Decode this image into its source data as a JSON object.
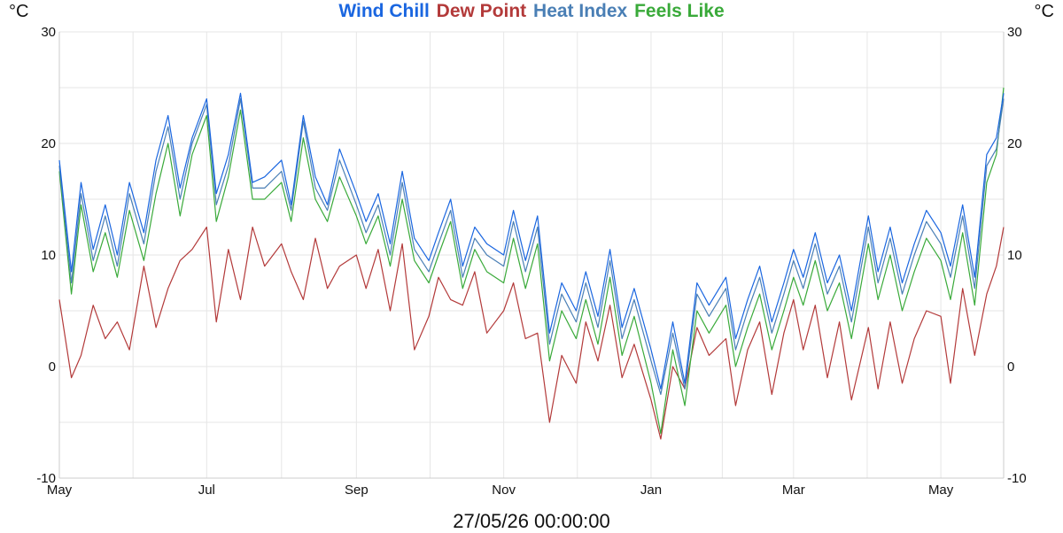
{
  "units": {
    "left": "°C",
    "right": "°C"
  },
  "footer": {
    "timestamp": "27/05/26 00:00:00"
  },
  "colors": {
    "grid": "#e6e6e6",
    "axis": "#cccccc",
    "wind_chill": "#1a66e0",
    "dew_point": "#b33a3a",
    "heat_index": "#4a7fb5",
    "feels_like": "#3aaa3a"
  },
  "chart_data": {
    "type": "line",
    "title": "",
    "xlabel": "",
    "ylabel": "°C",
    "ylim": [
      -10,
      30
    ],
    "yticks": [
      -10,
      0,
      10,
      20,
      30
    ],
    "x_range": [
      "2025-05-01",
      "2026-05-27"
    ],
    "x_tick_dates": [
      "2025-05-01",
      "2025-07-01",
      "2025-09-01",
      "2025-11-01",
      "2026-01-01",
      "2026-03-01",
      "2026-05-01"
    ],
    "x_tick_labels": [
      "May",
      "Jul",
      "Sep",
      "Nov",
      "Jan",
      "Mar",
      "May"
    ],
    "grid": true,
    "legend_position": "top-center",
    "series": [
      {
        "name": "Wind Chill",
        "key": "wind_chill",
        "x": [
          "2025-05-01",
          "2025-05-06",
          "2025-05-10",
          "2025-05-15",
          "2025-05-20",
          "2025-05-25",
          "2025-05-30",
          "2025-06-05",
          "2025-06-10",
          "2025-06-15",
          "2025-06-20",
          "2025-06-25",
          "2025-07-01",
          "2025-07-05",
          "2025-07-10",
          "2025-07-15",
          "2025-07-20",
          "2025-07-25",
          "2025-08-01",
          "2025-08-05",
          "2025-08-10",
          "2025-08-15",
          "2025-08-20",
          "2025-08-25",
          "2025-09-01",
          "2025-09-05",
          "2025-09-10",
          "2025-09-15",
          "2025-09-20",
          "2025-09-25",
          "2025-10-01",
          "2025-10-05",
          "2025-10-10",
          "2025-10-15",
          "2025-10-20",
          "2025-10-25",
          "2025-11-01",
          "2025-11-05",
          "2025-11-10",
          "2025-11-15",
          "2025-11-20",
          "2025-11-25",
          "2025-12-01",
          "2025-12-05",
          "2025-12-10",
          "2025-12-15",
          "2025-12-20",
          "2025-12-25",
          "2026-01-01",
          "2026-01-05",
          "2026-01-10",
          "2026-01-15",
          "2026-01-20",
          "2026-01-25",
          "2026-02-01",
          "2026-02-05",
          "2026-02-10",
          "2026-02-15",
          "2026-02-20",
          "2026-02-25",
          "2026-03-01",
          "2026-03-05",
          "2026-03-10",
          "2026-03-15",
          "2026-03-20",
          "2026-03-25",
          "2026-04-01",
          "2026-04-05",
          "2026-04-10",
          "2026-04-15",
          "2026-04-20",
          "2026-04-25",
          "2026-05-01",
          "2026-05-05",
          "2026-05-10",
          "2026-05-15",
          "2026-05-20",
          "2026-05-24",
          "2026-05-27"
        ],
        "values": [
          18.5,
          8.5,
          16.5,
          10.5,
          14.5,
          10.0,
          16.5,
          12.0,
          18.5,
          22.5,
          16.0,
          20.5,
          24.0,
          15.5,
          19.0,
          24.5,
          16.5,
          17.0,
          18.5,
          14.5,
          22.5,
          17.0,
          14.5,
          19.5,
          15.5,
          13.0,
          15.5,
          11.0,
          17.5,
          11.5,
          9.5,
          12.0,
          15.0,
          9.0,
          12.5,
          11.0,
          10.0,
          14.0,
          9.5,
          13.5,
          3.0,
          7.5,
          5.0,
          8.5,
          4.5,
          10.5,
          3.5,
          7.0,
          1.5,
          -2.0,
          4.0,
          -1.5,
          7.5,
          5.5,
          8.0,
          2.5,
          6.0,
          9.0,
          4.0,
          7.5,
          10.5,
          8.0,
          12.0,
          7.5,
          10.0,
          5.0,
          13.5,
          8.5,
          12.5,
          7.5,
          11.0,
          14.0,
          12.0,
          9.0,
          14.5,
          8.0,
          19.0,
          20.5,
          24.5
        ]
      },
      {
        "name": "Dew Point",
        "key": "dew_point",
        "x": [
          "2025-05-01",
          "2025-05-06",
          "2025-05-10",
          "2025-05-15",
          "2025-05-20",
          "2025-05-25",
          "2025-05-30",
          "2025-06-05",
          "2025-06-10",
          "2025-06-15",
          "2025-06-20",
          "2025-06-25",
          "2025-07-01",
          "2025-07-05",
          "2025-07-10",
          "2025-07-15",
          "2025-07-20",
          "2025-07-25",
          "2025-08-01",
          "2025-08-05",
          "2025-08-10",
          "2025-08-15",
          "2025-08-20",
          "2025-08-25",
          "2025-09-01",
          "2025-09-05",
          "2025-09-10",
          "2025-09-15",
          "2025-09-20",
          "2025-09-25",
          "2025-10-01",
          "2025-10-05",
          "2025-10-10",
          "2025-10-15",
          "2025-10-20",
          "2025-10-25",
          "2025-11-01",
          "2025-11-05",
          "2025-11-10",
          "2025-11-15",
          "2025-11-20",
          "2025-11-25",
          "2025-12-01",
          "2025-12-05",
          "2025-12-10",
          "2025-12-15",
          "2025-12-20",
          "2025-12-25",
          "2026-01-01",
          "2026-01-05",
          "2026-01-10",
          "2026-01-15",
          "2026-01-20",
          "2026-01-25",
          "2026-02-01",
          "2026-02-05",
          "2026-02-10",
          "2026-02-15",
          "2026-02-20",
          "2026-02-25",
          "2026-03-01",
          "2026-03-05",
          "2026-03-10",
          "2026-03-15",
          "2026-03-20",
          "2026-03-25",
          "2026-04-01",
          "2026-04-05",
          "2026-04-10",
          "2026-04-15",
          "2026-04-20",
          "2026-04-25",
          "2026-05-01",
          "2026-05-05",
          "2026-05-10",
          "2026-05-15",
          "2026-05-20",
          "2026-05-24",
          "2026-05-27"
        ],
        "values": [
          6.0,
          -1.0,
          1.0,
          5.5,
          2.5,
          4.0,
          1.5,
          9.0,
          3.5,
          7.0,
          9.5,
          10.5,
          12.5,
          4.0,
          10.5,
          6.0,
          12.5,
          9.0,
          11.0,
          8.5,
          6.0,
          11.5,
          7.0,
          9.0,
          10.0,
          7.0,
          10.5,
          5.0,
          11.0,
          1.5,
          4.5,
          8.0,
          6.0,
          5.5,
          8.5,
          3.0,
          5.0,
          7.5,
          2.5,
          3.0,
          -5.0,
          1.0,
          -1.5,
          4.0,
          0.5,
          5.5,
          -1.0,
          2.0,
          -3.0,
          -6.5,
          0.0,
          -2.0,
          3.5,
          1.0,
          2.5,
          -3.5,
          1.5,
          4.0,
          -2.5,
          3.0,
          6.0,
          1.5,
          5.5,
          -1.0,
          4.0,
          -3.0,
          3.5,
          -2.0,
          4.0,
          -1.5,
          2.5,
          5.0,
          4.5,
          -1.5,
          7.0,
          1.0,
          6.5,
          9.0,
          12.5
        ]
      },
      {
        "name": "Heat Index",
        "key": "heat_index",
        "x": [
          "2025-05-01",
          "2025-05-06",
          "2025-05-10",
          "2025-05-15",
          "2025-05-20",
          "2025-05-25",
          "2025-05-30",
          "2025-06-05",
          "2025-06-10",
          "2025-06-15",
          "2025-06-20",
          "2025-06-25",
          "2025-07-01",
          "2025-07-05",
          "2025-07-10",
          "2025-07-15",
          "2025-07-20",
          "2025-07-25",
          "2025-08-01",
          "2025-08-05",
          "2025-08-10",
          "2025-08-15",
          "2025-08-20",
          "2025-08-25",
          "2025-09-01",
          "2025-09-05",
          "2025-09-10",
          "2025-09-15",
          "2025-09-20",
          "2025-09-25",
          "2025-10-01",
          "2025-10-05",
          "2025-10-10",
          "2025-10-15",
          "2025-10-20",
          "2025-10-25",
          "2025-11-01",
          "2025-11-05",
          "2025-11-10",
          "2025-11-15",
          "2025-11-20",
          "2025-11-25",
          "2025-12-01",
          "2025-12-05",
          "2025-12-10",
          "2025-12-15",
          "2025-12-20",
          "2025-12-25",
          "2026-01-01",
          "2026-01-05",
          "2026-01-10",
          "2026-01-15",
          "2026-01-20",
          "2026-01-25",
          "2026-02-01",
          "2026-02-05",
          "2026-02-10",
          "2026-02-15",
          "2026-02-20",
          "2026-02-25",
          "2026-03-01",
          "2026-03-05",
          "2026-03-10",
          "2026-03-15",
          "2026-03-20",
          "2026-03-25",
          "2026-04-01",
          "2026-04-05",
          "2026-04-10",
          "2026-04-15",
          "2026-04-20",
          "2026-04-25",
          "2026-05-01",
          "2026-05-05",
          "2026-05-10",
          "2026-05-15",
          "2026-05-20",
          "2026-05-24",
          "2026-05-27"
        ],
        "values": [
          18.0,
          7.5,
          15.5,
          9.5,
          13.5,
          9.0,
          15.5,
          11.0,
          17.5,
          21.5,
          15.0,
          20.0,
          23.5,
          14.5,
          18.0,
          24.0,
          16.0,
          16.0,
          17.5,
          14.0,
          22.0,
          16.0,
          14.0,
          18.5,
          14.5,
          12.0,
          14.5,
          10.0,
          16.5,
          10.5,
          8.5,
          11.0,
          14.0,
          8.0,
          11.5,
          10.0,
          9.0,
          13.0,
          8.5,
          12.5,
          2.0,
          6.5,
          4.0,
          7.5,
          3.5,
          9.5,
          2.5,
          6.0,
          0.5,
          -2.5,
          3.0,
          -2.0,
          6.5,
          4.5,
          7.0,
          1.5,
          5.0,
          8.0,
          3.0,
          6.5,
          9.5,
          7.0,
          11.0,
          6.5,
          9.0,
          4.0,
          12.5,
          7.5,
          11.5,
          6.5,
          10.0,
          13.0,
          11.0,
          8.0,
          13.5,
          7.0,
          18.0,
          19.5,
          24.0
        ]
      },
      {
        "name": "Feels Like",
        "key": "feels_like",
        "x": [
          "2025-05-01",
          "2025-05-06",
          "2025-05-10",
          "2025-05-15",
          "2025-05-20",
          "2025-05-25",
          "2025-05-30",
          "2025-06-05",
          "2025-06-10",
          "2025-06-15",
          "2025-06-20",
          "2025-06-25",
          "2025-07-01",
          "2025-07-05",
          "2025-07-10",
          "2025-07-15",
          "2025-07-20",
          "2025-07-25",
          "2025-08-01",
          "2025-08-05",
          "2025-08-10",
          "2025-08-15",
          "2025-08-20",
          "2025-08-25",
          "2025-09-01",
          "2025-09-05",
          "2025-09-10",
          "2025-09-15",
          "2025-09-20",
          "2025-09-25",
          "2025-10-01",
          "2025-10-05",
          "2025-10-10",
          "2025-10-15",
          "2025-10-20",
          "2025-10-25",
          "2025-11-01",
          "2025-11-05",
          "2025-11-10",
          "2025-11-15",
          "2025-11-20",
          "2025-11-25",
          "2025-12-01",
          "2025-12-05",
          "2025-12-10",
          "2025-12-15",
          "2025-12-20",
          "2025-12-25",
          "2026-01-01",
          "2026-01-05",
          "2026-01-10",
          "2026-01-15",
          "2026-01-20",
          "2026-01-25",
          "2026-02-01",
          "2026-02-05",
          "2026-02-10",
          "2026-02-15",
          "2026-02-20",
          "2026-02-25",
          "2026-03-01",
          "2026-03-05",
          "2026-03-10",
          "2026-03-15",
          "2026-03-20",
          "2026-03-25",
          "2026-04-01",
          "2026-04-05",
          "2026-04-10",
          "2026-04-15",
          "2026-04-20",
          "2026-04-25",
          "2026-05-01",
          "2026-05-05",
          "2026-05-10",
          "2026-05-15",
          "2026-05-20",
          "2026-05-24",
          "2026-05-27"
        ],
        "values": [
          17.5,
          6.5,
          14.5,
          8.5,
          12.0,
          8.0,
          14.0,
          9.5,
          15.5,
          20.0,
          13.5,
          19.0,
          22.5,
          13.0,
          17.0,
          23.0,
          15.0,
          15.0,
          16.5,
          13.0,
          20.5,
          15.0,
          13.0,
          17.0,
          13.5,
          11.0,
          13.5,
          9.0,
          15.0,
          9.5,
          7.5,
          10.0,
          13.0,
          7.0,
          10.5,
          8.5,
          7.5,
          11.5,
          7.0,
          11.0,
          0.5,
          5.0,
          2.5,
          6.0,
          2.0,
          8.0,
          1.0,
          4.5,
          -1.5,
          -6.0,
          1.5,
          -3.5,
          5.0,
          3.0,
          5.5,
          0.0,
          3.5,
          6.5,
          1.5,
          5.0,
          8.0,
          5.5,
          9.5,
          5.0,
          7.5,
          2.5,
          11.0,
          6.0,
          10.0,
          5.0,
          8.5,
          11.5,
          9.5,
          6.0,
          12.0,
          5.5,
          16.5,
          19.0,
          25.0
        ]
      }
    ]
  }
}
